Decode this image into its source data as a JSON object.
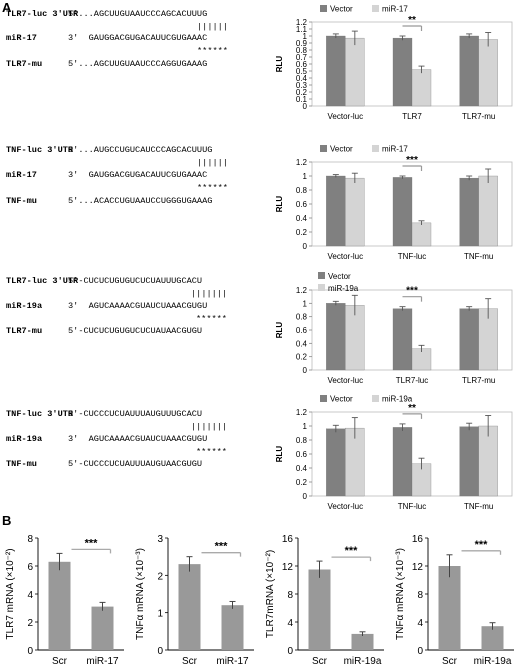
{
  "panel_labels": {
    "a": "A",
    "b": "B"
  },
  "sequence_blocks": [
    {
      "rows": [
        {
          "name": "TLR7-luc 3'UTR",
          "seq": "5'...AGCUUGUAAUCCCAGCACUUUG"
        },
        {
          "pair": "||||||"
        },
        {
          "name": "miR-17",
          "seq": "3'  GAUGGACGUGACAUUCGUGAAAC"
        },
        {
          "stars": "******"
        },
        {
          "name": "TLR7-mu",
          "seq": "5'...AGCUUGUAAUCCCAGGUGAAAG"
        }
      ]
    },
    {
      "rows": [
        {
          "name": "TNF-luc 3'UTR",
          "seq": "5'...AUGCCUGUCAUCCCAGCACUUUG"
        },
        {
          "pair": "||||||"
        },
        {
          "name": "miR-17",
          "seq": "3'  GAUGGACGUGACAUUCGUGAAAC"
        },
        {
          "stars": "******"
        },
        {
          "name": "TNF-mu",
          "seq": "5'...ACACCUGUAAUCCUGGGUGAAAG"
        }
      ]
    },
    {
      "rows": [
        {
          "name": "TLR7-luc 3'UTR",
          "seq": "5'-CUCUCUGUGUCUCUAUUUGCACU"
        },
        {
          "pair": "|||||||"
        },
        {
          "name": "miR-19a",
          "seq": "3'  AGUCAAAACGUAUCUAAACGUGU"
        },
        {
          "stars": "******"
        },
        {
          "name": "TLR7-mu",
          "seq": "5'-CUCUCUGUGUCUCUAUAACGUGU"
        }
      ]
    },
    {
      "rows": [
        {
          "name": "TNF-luc 3'UTR",
          "seq": "5'-CUCCCUCUAUUUAUGUUUGCACU"
        },
        {
          "pair": "|||||||"
        },
        {
          "name": "miR-19a",
          "seq": "3'  AGUCAAAACGUAUCUAAACGUGU"
        },
        {
          "stars": "******"
        },
        {
          "name": "TNF-mu",
          "seq": "5'-CUCCCUCUAUUUAUGUAACGUGU"
        }
      ]
    }
  ],
  "chart_data": [
    {
      "type": "bar",
      "ylabel": "RLU",
      "ylim": [
        0,
        1.2
      ],
      "yticks": [
        "0",
        "0.1",
        "0.2",
        "0.3",
        "0.4",
        "0.5",
        "0.6",
        "0.7",
        "0.8",
        "0.9",
        "1",
        "1.1",
        "1.2"
      ],
      "categories": [
        "Vector-luc",
        "TLR7",
        "TLR7-mu"
      ],
      "series": [
        {
          "name": "Vector",
          "values": [
            1.0,
            0.97,
            1.0
          ],
          "errors": [
            0.03,
            0.03,
            0.03
          ],
          "color": "#808080"
        },
        {
          "name": "miR-17",
          "values": [
            0.97,
            0.52,
            0.95
          ],
          "errors": [
            0.1,
            0.05,
            0.1
          ],
          "color": "#d4d4d4"
        }
      ],
      "significance": "**",
      "legend": "top"
    },
    {
      "type": "bar",
      "ylabel": "RLU",
      "ylim": [
        0,
        1.2
      ],
      "yticks": [
        "0",
        "0.2",
        "0.4",
        "0.6",
        "0.8",
        "1",
        "1.2"
      ],
      "categories": [
        "Vector-luc",
        "TNF-luc",
        "TNF-mu"
      ],
      "series": [
        {
          "name": "Vector",
          "values": [
            1.0,
            0.98,
            0.97
          ],
          "errors": [
            0.02,
            0.02,
            0.03
          ],
          "color": "#808080"
        },
        {
          "name": "miR-17",
          "values": [
            0.97,
            0.33,
            1.0
          ],
          "errors": [
            0.07,
            0.03,
            0.1
          ],
          "color": "#d4d4d4"
        }
      ],
      "significance": "***",
      "legend": "top"
    },
    {
      "type": "bar",
      "ylabel": "RLU",
      "ylim": [
        0,
        1.2
      ],
      "yticks": [
        "0",
        "0.2",
        "0.4",
        "0.6",
        "0.8",
        "1",
        "1.2"
      ],
      "categories": [
        "Vector-luc",
        "TLR7-luc",
        "TLR7-mu"
      ],
      "series": [
        {
          "name": "Vector",
          "values": [
            1.0,
            0.92,
            0.92
          ],
          "errors": [
            0.03,
            0.03,
            0.03
          ],
          "color": "#808080"
        },
        {
          "name": "miR-19a",
          "values": [
            0.97,
            0.32,
            0.92
          ],
          "errors": [
            0.15,
            0.05,
            0.15
          ],
          "color": "#d4d4d4"
        }
      ],
      "significance": "***",
      "legend": "top-left"
    },
    {
      "type": "bar",
      "ylabel": "RLU",
      "ylim": [
        0,
        1.2
      ],
      "yticks": [
        "0",
        "0.2",
        "0.4",
        "0.6",
        "0.8",
        "1",
        "1.2"
      ],
      "categories": [
        "Vector-luc",
        "TNF-luc",
        "TNF-mu"
      ],
      "series": [
        {
          "name": "Vector",
          "values": [
            0.96,
            0.98,
            0.99
          ],
          "errors": [
            0.05,
            0.05,
            0.05
          ],
          "color": "#808080"
        },
        {
          "name": "miR-19a",
          "values": [
            0.97,
            0.46,
            1.0
          ],
          "errors": [
            0.15,
            0.08,
            0.15
          ],
          "color": "#d4d4d4"
        }
      ],
      "significance": "**",
      "legend": "top"
    },
    {
      "type": "bar",
      "ylabel": "TLR7 mRNA (×10⁻²)",
      "ylim": [
        0,
        8
      ],
      "yticks": [
        "0",
        "2",
        "4",
        "6",
        "8"
      ],
      "categories": [
        "Scr",
        "miR-17"
      ],
      "values": [
        6.3,
        3.1
      ],
      "errors": [
        0.6,
        0.3
      ],
      "significance": "***"
    },
    {
      "type": "bar",
      "ylabel": "TNFα mRNA (×10⁻³)",
      "ylim": [
        0,
        3
      ],
      "yticks": [
        "0",
        "1",
        "2",
        "3"
      ],
      "categories": [
        "Scr",
        "miR-17"
      ],
      "values": [
        2.3,
        1.2
      ],
      "errors": [
        0.2,
        0.1
      ],
      "significance": "***"
    },
    {
      "type": "bar",
      "ylabel": "TLR7mRNA (×10⁻²)",
      "ylim": [
        0,
        16
      ],
      "yticks": [
        "0",
        "4",
        "8",
        "12",
        "16"
      ],
      "categories": [
        "Scr",
        "miR-19a"
      ],
      "values": [
        11.5,
        2.3
      ],
      "errors": [
        1.2,
        0.3
      ],
      "significance": "***"
    },
    {
      "type": "bar",
      "ylabel": "TNFα mRNA (×10⁻³)",
      "ylim": [
        0,
        16
      ],
      "yticks": [
        "0",
        "4",
        "8",
        "12",
        "16"
      ],
      "categories": [
        "Scr",
        "miR-19a"
      ],
      "values": [
        12.0,
        3.4
      ],
      "errors": [
        1.6,
        0.5
      ],
      "significance": "***"
    }
  ]
}
